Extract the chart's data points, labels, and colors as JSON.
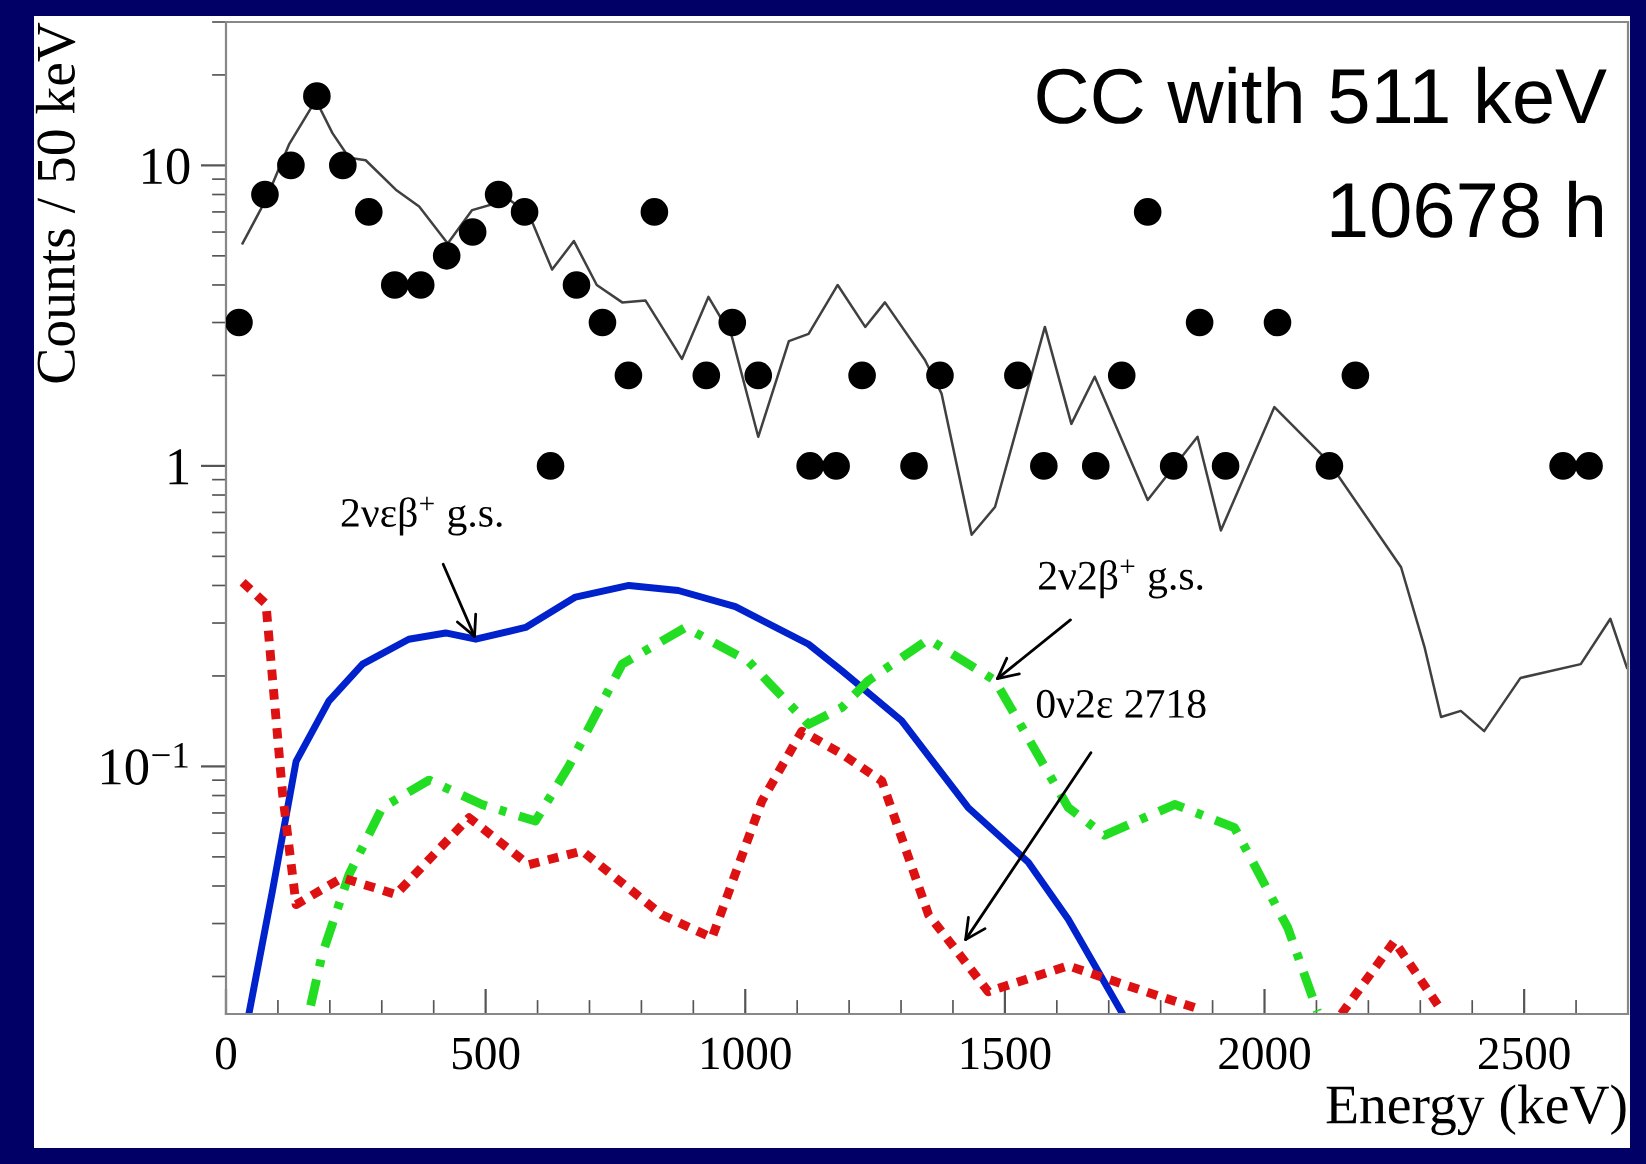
{
  "chart_data": {
    "type": "line",
    "xlabel": "Energy (keV)",
    "ylabel": "Counts / 50 keV",
    "log": "y",
    "grid": false,
    "legend": false,
    "xlim": [
      0,
      2700
    ],
    "xticks": [
      0,
      500,
      1000,
      1500,
      2000,
      2500
    ],
    "ylim": [
      0.015,
      30
    ],
    "yticks": [
      {
        "value": 0.1,
        "label": "10$^{−1}$"
      },
      1,
      10
    ],
    "series": [
      {
        "color": "#404040",
        "line_style": "solid",
        "x": [
          32,
          77,
          122,
          173,
          205,
          237,
          269,
          327,
          372,
          427,
          474,
          545,
          583,
          628,
          670,
          714,
          763,
          808,
          878,
          929,
          974,
          1025,
          1084,
          1122,
          1178,
          1231,
          1269,
          1346,
          1378,
          1436,
          1481,
          1577,
          1628,
          1673,
          1775,
          1871,
          1916,
          2019,
          2122,
          2263,
          2308,
          2340,
          2378,
          2423,
          2493,
          2609,
          2666,
          2698
        ],
        "values": [
          5.5,
          7.7,
          11.8,
          16.5,
          12.8,
          10.6,
          10.4,
          8.3,
          7.3,
          5.5,
          7.1,
          7.7,
          6.9,
          4.5,
          5.6,
          4.0,
          3.5,
          3.55,
          2.27,
          3.65,
          2.7,
          1.25,
          2.6,
          2.75,
          4.0,
          2.9,
          3.5,
          2.25,
          1.74,
          0.59,
          0.73,
          2.9,
          1.38,
          1.98,
          0.77,
          1.25,
          0.61,
          1.57,
          1.04,
          0.46,
          0.25,
          0.146,
          0.153,
          0.131,
          0.197,
          0.219,
          0.31,
          0.213
        ]
      },
      {
        "type": "scatter",
        "color": "#000000",
        "marker": "circle",
        "x": [
          25,
          75,
          125,
          175,
          225,
          275,
          325,
          375,
          425,
          475,
          525,
          575,
          625,
          675,
          725,
          775,
          825,
          925,
          975,
          1025,
          1125,
          1175,
          1225,
          1325,
          1375,
          1525,
          1575,
          1675,
          1725,
          1775,
          1825,
          1875,
          1925,
          2025,
          2125,
          2175,
          2575,
          2625
        ],
        "values": [
          3,
          8,
          10,
          17,
          10,
          7,
          4,
          4,
          5,
          6,
          8,
          7,
          1,
          4,
          3,
          2,
          7,
          2,
          3,
          2,
          1,
          1,
          2,
          1,
          2,
          2,
          1,
          1,
          2,
          7,
          1,
          3,
          1,
          3,
          1,
          2,
          1,
          1
        ]
      },
      {
        "color": "#0022cc",
        "line_style": "solid",
        "x": [
          45,
          90,
          135,
          198,
          263,
          352,
          423,
          481,
          577,
          673,
          776,
          871,
          981,
          1122,
          1186,
          1301,
          1429,
          1545,
          1622,
          1724
        ],
        "values": [
          0.0153,
          0.039,
          0.104,
          0.165,
          0.219,
          0.265,
          0.278,
          0.265,
          0.29,
          0.366,
          0.4,
          0.385,
          0.34,
          0.255,
          0.208,
          0.142,
          0.073,
          0.048,
          0.031,
          0.0153
        ]
      },
      {
        "color": "#22dd22",
        "line_style": "dashdot",
        "x": [
          163,
          185,
          237,
          301,
          391,
          493,
          596,
          660,
          763,
          885,
          1006,
          1122,
          1186,
          1237,
          1353,
          1481,
          1622,
          1692,
          1827,
          1942,
          2045,
          2102
        ],
        "values": [
          0.016,
          0.0236,
          0.0437,
          0.073,
          0.09,
          0.0747,
          0.0658,
          0.1,
          0.219,
          0.29,
          0.224,
          0.138,
          0.157,
          0.193,
          0.265,
          0.193,
          0.073,
          0.059,
          0.0747,
          0.0626,
          0.029,
          0.0153
        ]
      },
      {
        "color": "#dd1111",
        "line_style": "dotted",
        "x": [
          32,
          77,
          109,
          135,
          224,
          327,
          468,
          583,
          686,
          839,
          936,
          1032,
          1109,
          1186,
          1263,
          1353,
          1468,
          1622,
          1750,
          1878,
          2000,
          2148,
          2250,
          2340
        ],
        "values": [
          0.41,
          0.347,
          0.081,
          0.0347,
          0.0426,
          0.0375,
          0.0675,
          0.0471,
          0.0523,
          0.0321,
          0.0269,
          0.0767,
          0.131,
          0.11,
          0.0894,
          0.0321,
          0.0178,
          0.0217,
          0.0183,
          0.0155,
          null,
          0.015,
          0.0262,
          0.0155
        ]
      }
    ],
    "annotations": [
      "CC with 511 keV",
      "10678 h",
      {
        "text": "2νεβ$^{+}$ g.s.",
        "x": 481,
        "y": 0.265
      },
      {
        "text": "2ν2β$^{+}$ g.s.",
        "x": 1481,
        "y": 0.193
      },
      {
        "text": "0ν2ε 2718",
        "x": 1421,
        "y": 0.026
      }
    ]
  }
}
